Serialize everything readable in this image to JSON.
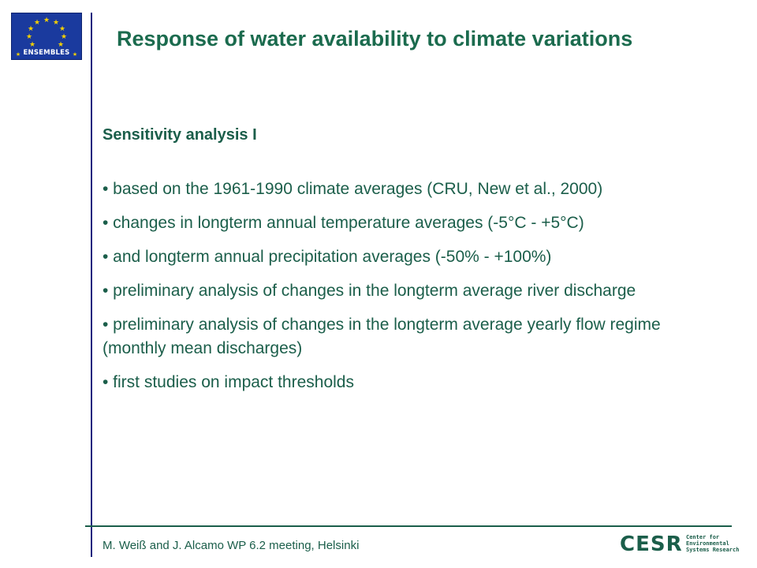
{
  "logo": {
    "text": "ENSEMBLES",
    "flag_color": "#1a3a9e",
    "star_color": "#f5d000"
  },
  "slide": {
    "title": "Response of water availability to climate variations",
    "subtitle": "Sensitivity analysis I",
    "bullets": [
      "• based on the 1961-1990 climate averages (CRU, New et al., 2000)",
      "• changes in longterm annual temperature averages (-5°C - +5°C)",
      "• and longterm annual precipitation averages (-50% - +100%)",
      "• preliminary analysis of changes in the longterm average river discharge",
      "• preliminary analysis of changes in the longterm average yearly flow regime (monthly mean discharges)",
      "• first studies on impact thresholds"
    ]
  },
  "footer": {
    "text": "M. Weiß and J. Alcamo  WP 6.2 meeting, Helsinki",
    "cesr_logo": "CESR",
    "cesr_lines": [
      "Center for",
      "Environmental",
      "Systems Research"
    ]
  },
  "colors": {
    "title": "#1b6b4e",
    "text": "#1b5e4a",
    "vertical_rule": "#1a237e",
    "horizontal_rule": "#1b5e4a"
  }
}
